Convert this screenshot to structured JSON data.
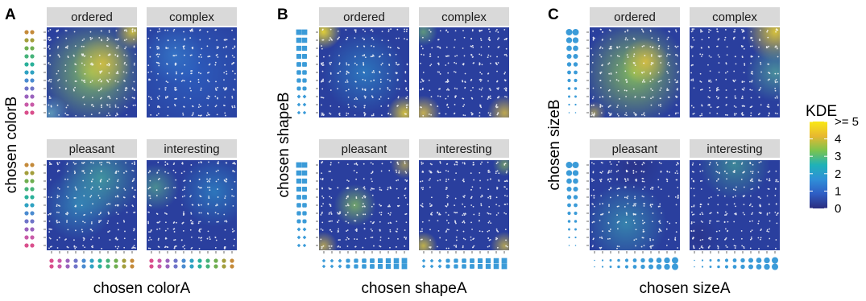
{
  "chart_data": {
    "type": "heatmap",
    "panels": [
      {
        "letter": "A",
        "xlabel": "chosen colorA",
        "ylabel": "chosen colorB",
        "facets": [
          "ordered",
          "complex",
          "pleasant",
          "interesting"
        ],
        "levels": 11,
        "axis_marker": "color",
        "palette": [
          "#d94f8c",
          "#c85aa8",
          "#9a62bd",
          "#6f74c8",
          "#4a8bd0",
          "#2fa2c2",
          "#2ab09a",
          "#45b37a",
          "#6fae50",
          "#a39e3c",
          "#c48a3a"
        ]
      },
      {
        "letter": "B",
        "xlabel": "chosen shapeA",
        "ylabel": "chosen shapeB",
        "facets": [
          "ordered",
          "complex",
          "pleasant",
          "interesting"
        ],
        "levels": 11,
        "axis_marker": "shape",
        "marker_color": "#3b9bd8"
      },
      {
        "letter": "C",
        "xlabel": "chosen sizeA",
        "ylabel": "chosen sizeB",
        "facets": [
          "ordered",
          "complex",
          "pleasant",
          "interesting"
        ],
        "levels": 11,
        "axis_marker": "size",
        "marker_color": "#3b9bd8"
      }
    ],
    "legend": {
      "title": "KDE",
      "ticks": [
        "0",
        "1",
        "2",
        "3",
        "4",
        ">= 5"
      ],
      "range": [
        0,
        5
      ],
      "colors": [
        "#2b2d7e",
        "#2f5dc4",
        "#2f8fd8",
        "#1fb2b8",
        "#7cc44e",
        "#e8b830",
        "#f9e814"
      ]
    }
  }
}
